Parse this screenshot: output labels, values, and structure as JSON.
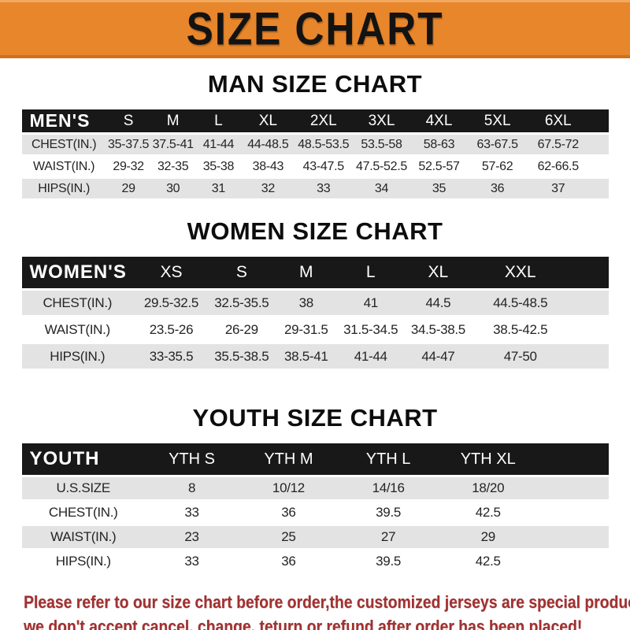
{
  "banner": {
    "title": "SIZE CHART"
  },
  "sections": [
    {
      "heading": "MAN SIZE CHART",
      "table": {
        "header_label": "MEN'S",
        "columns": [
          "S",
          "M",
          "L",
          "XL",
          "2XL",
          "3XL",
          "4XL",
          "5XL",
          "6XL"
        ],
        "rows": [
          {
            "label": "CHEST(IN.)",
            "values": [
              "35-37.5",
              "37.5-41",
              "41-44",
              "44-48.5",
              "48.5-53.5",
              "53.5-58",
              "58-63",
              "63-67.5",
              "67.5-72"
            ]
          },
          {
            "label": "WAIST(IN.)",
            "values": [
              "29-32",
              "32-35",
              "35-38",
              "38-43",
              "43-47.5",
              "47.5-52.5",
              "52.5-57",
              "57-62",
              "62-66.5"
            ]
          },
          {
            "label": "HIPS(IN.)",
            "values": [
              "29",
              "30",
              "31",
              "32",
              "33",
              "34",
              "35",
              "36",
              "37"
            ]
          }
        ]
      }
    },
    {
      "heading": "WOMEN SIZE CHART",
      "table": {
        "header_label": "WOMEN'S",
        "columns": [
          "XS",
          "S",
          "M",
          "L",
          "XL",
          "XXL"
        ],
        "rows": [
          {
            "label": "CHEST(IN.)",
            "values": [
              "29.5-32.5",
              "32.5-35.5",
              "38",
              "41",
              "44.5",
              "44.5-48.5"
            ]
          },
          {
            "label": "WAIST(IN.)",
            "values": [
              "23.5-26",
              "26-29",
              "29-31.5",
              "31.5-34.5",
              "34.5-38.5",
              "38.5-42.5"
            ]
          },
          {
            "label": "HIPS(IN.)",
            "values": [
              "33-35.5",
              "35.5-38.5",
              "38.5-41",
              "41-44",
              "44-47",
              "47-50"
            ]
          }
        ]
      }
    },
    {
      "heading": "YOUTH SIZE CHART",
      "table": {
        "header_label": "YOUTH",
        "columns": [
          "YTH S",
          "YTH M",
          "YTH L",
          "YTH XL"
        ],
        "rows": [
          {
            "label": "U.S.SIZE",
            "values": [
              "8",
              "10/12",
              "14/16",
              "18/20"
            ]
          },
          {
            "label": "CHEST(IN.)",
            "values": [
              "33",
              "36",
              "39.5",
              "42.5"
            ]
          },
          {
            "label": "WAIST(IN.)",
            "values": [
              "23",
              "25",
              "27",
              "29"
            ]
          },
          {
            "label": "HIPS(IN.)",
            "values": [
              "33",
              "36",
              "39.5",
              "42.5"
            ]
          }
        ]
      }
    }
  ],
  "footer": {
    "line1": "Please refer to our size chart before order,the customized jerseys are special products,",
    "line2": "we don't accept cancel, change, teturn or refund after order has been placed!"
  },
  "colors": {
    "banner_orange": "#E8862C",
    "header_black": "#181818",
    "row_gray": "#E3E3E3",
    "footer_red": "#A23131"
  }
}
